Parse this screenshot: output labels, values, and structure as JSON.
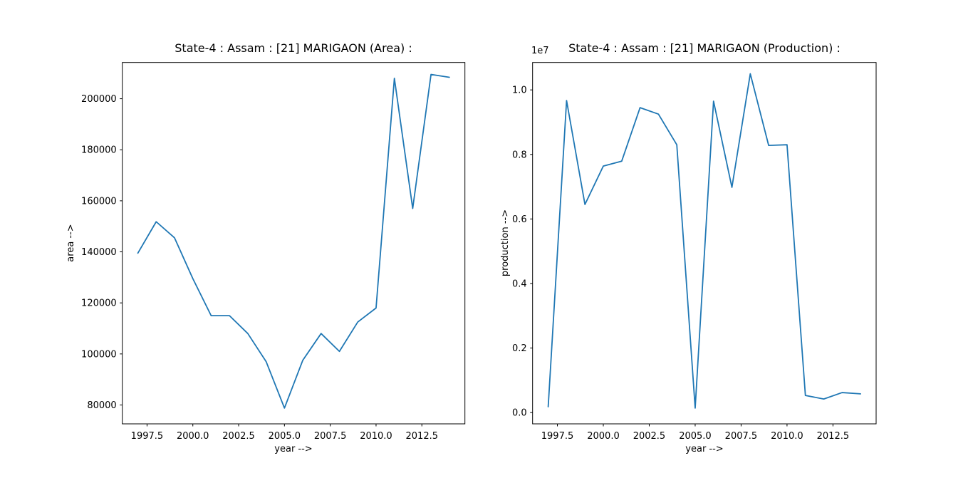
{
  "figure": {
    "background_color": "#ffffff",
    "spine_color": "#000000",
    "text_color": "#000000"
  },
  "chart_data": [
    {
      "type": "line",
      "title": "State-4 : Assam : [21] MARIGAON (Area) :",
      "xlabel": "year -->",
      "ylabel": "area -->",
      "offset_text": "",
      "line_color": "#1f77b4",
      "legend": "none",
      "grid": false,
      "x": [
        1997,
        1998,
        1999,
        2000,
        2001,
        2002,
        2003,
        2004,
        2005,
        2006,
        2007,
        2008,
        2009,
        2010,
        2011,
        2012,
        2013,
        2014
      ],
      "y": [
        139500,
        151800,
        145500,
        129500,
        115000,
        115000,
        108000,
        97000,
        78800,
        97500,
        108000,
        101000,
        112500,
        118000,
        208000,
        157000,
        209500,
        208400
      ],
      "xlim": [
        1996.15,
        2014.85
      ],
      "ylim": [
        72600,
        214200
      ],
      "xticks": [
        1997.5,
        2000.0,
        2002.5,
        2005.0,
        2007.5,
        2010.0,
        2012.5
      ],
      "xtick_labels": [
        "1997.5",
        "2000.0",
        "2002.5",
        "2005.0",
        "2007.5",
        "2010.0",
        "2012.5"
      ],
      "yticks": [
        80000,
        100000,
        120000,
        140000,
        160000,
        180000,
        200000
      ],
      "ytick_labels": [
        "80000",
        "100000",
        "120000",
        "140000",
        "160000",
        "180000",
        "200000"
      ]
    },
    {
      "type": "line",
      "title": "State-4 : Assam : [21] MARIGAON (Production) :",
      "xlabel": "year -->",
      "ylabel": "production -->",
      "offset_text": "1e7",
      "line_color": "#1f77b4",
      "legend": "none",
      "grid": false,
      "x": [
        1997,
        1998,
        1999,
        2000,
        2001,
        2002,
        2003,
        2004,
        2005,
        2006,
        2007,
        2008,
        2009,
        2010,
        2011,
        2012,
        2013,
        2014
      ],
      "y": [
        180000,
        9670000,
        6450000,
        7640000,
        7790000,
        9450000,
        9250000,
        8300000,
        140000,
        9650000,
        6980000,
        10500000,
        8280000,
        8300000,
        530000,
        420000,
        620000,
        580000
      ],
      "xlim": [
        1996.15,
        2014.85
      ],
      "ylim": [
        -350000,
        10850000
      ],
      "xticks": [
        1997.5,
        2000.0,
        2002.5,
        2005.0,
        2007.5,
        2010.0,
        2012.5
      ],
      "xtick_labels": [
        "1997.5",
        "2000.0",
        "2002.5",
        "2005.0",
        "2007.5",
        "2010.0",
        "2012.5"
      ],
      "yticks": [
        0,
        2000000,
        4000000,
        6000000,
        8000000,
        10000000
      ],
      "ytick_labels": [
        "0.0",
        "0.2",
        "0.4",
        "0.6",
        "0.8",
        "1.0"
      ]
    }
  ]
}
